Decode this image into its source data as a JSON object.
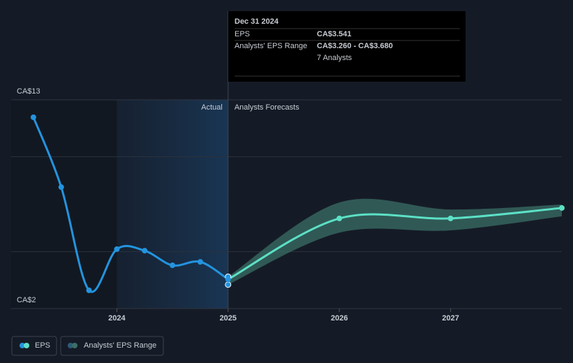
{
  "chart_data": {
    "type": "line",
    "xlim": [
      2023.05,
      2028.0
    ],
    "xticks": [
      2024,
      2025,
      2026,
      2027
    ],
    "ylim": [
      2,
      13
    ],
    "yticks": [
      {
        "value": 2,
        "label": "CA$2"
      },
      {
        "value": 13,
        "label": "CA$13"
      }
    ],
    "gridlines": [
      5,
      10
    ],
    "highlight": [
      2024,
      2025
    ],
    "divider_x": 2025,
    "actual_label": "Actual",
    "forecast_label": "Analysts Forecasts",
    "series": [
      {
        "name": "EPS",
        "color": "#2394df",
        "x": [
          2023.25,
          2023.5,
          2023.75,
          2024.0,
          2024.25,
          2024.5,
          2024.75,
          2025.0
        ],
        "values": [
          12.08,
          8.4,
          2.96,
          5.13,
          5.05,
          4.28,
          4.46,
          3.541
        ]
      }
    ],
    "forecast": {
      "color": "#5ce0c6",
      "x": [
        2026,
        2027,
        2028
      ],
      "values": [
        6.75,
        6.75,
        7.3
      ]
    },
    "range": {
      "name": "Analysts' EPS Range",
      "color": "#3a6f66",
      "x": [
        2025,
        2026,
        2027,
        2028
      ],
      "low": [
        3.26,
        6.0,
        6.12,
        6.86
      ],
      "high": [
        3.68,
        7.59,
        7.22,
        7.48
      ]
    },
    "tooltip": {
      "date": "Dec 31 2024",
      "rows": [
        [
          "EPS",
          "CA$3.541"
        ],
        [
          "Analysts' EPS Range",
          "CA$3.260 - CA$3.680"
        ]
      ],
      "note": "7 Analysts"
    }
  }
}
